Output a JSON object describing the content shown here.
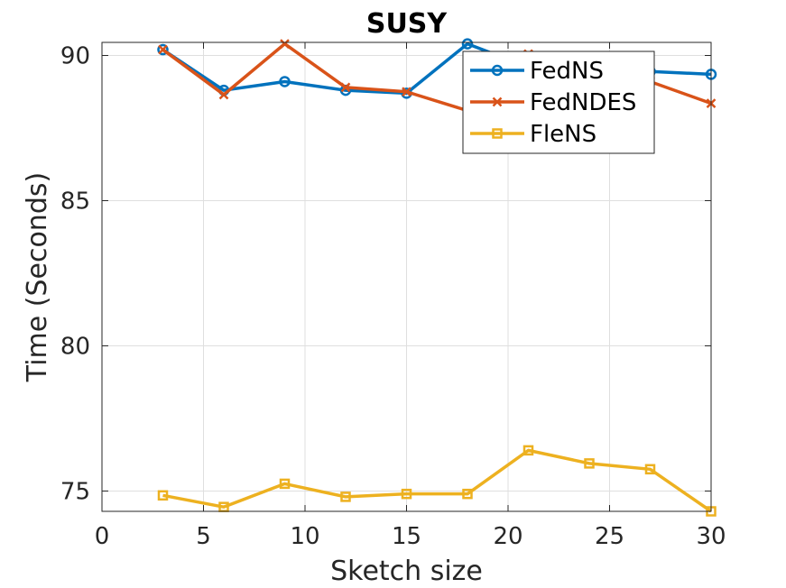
{
  "chart_data": {
    "type": "line",
    "title": "SUSY",
    "xlabel": "Sketch size",
    "ylabel": "Time (Seconds)",
    "xlim": [
      0,
      30
    ],
    "ylim": [
      74.3,
      90.45
    ],
    "xticks": [
      0,
      5,
      10,
      15,
      20,
      25,
      30
    ],
    "yticks": [
      75,
      80,
      85,
      90
    ],
    "grid": true,
    "legend_position": "top-right",
    "x": [
      3,
      6,
      9,
      12,
      15,
      18,
      21,
      24,
      27,
      30
    ],
    "series": [
      {
        "name": "FedNS",
        "color": "#0072BD",
        "marker": "circle",
        "values": [
          90.2,
          88.8,
          89.1,
          88.8,
          88.7,
          90.4,
          89.6,
          89.5,
          89.45,
          89.35
        ]
      },
      {
        "name": "FedNDES",
        "color": "#D95319",
        "marker": "x",
        "values": [
          90.2,
          88.65,
          90.4,
          88.9,
          88.75,
          88.1,
          90.05,
          89.5,
          89.1,
          88.35
        ]
      },
      {
        "name": "FleNS",
        "color": "#EDB120",
        "marker": "square",
        "values": [
          74.85,
          74.45,
          75.25,
          74.8,
          74.9,
          74.9,
          76.4,
          75.95,
          75.75,
          74.3
        ]
      }
    ]
  }
}
